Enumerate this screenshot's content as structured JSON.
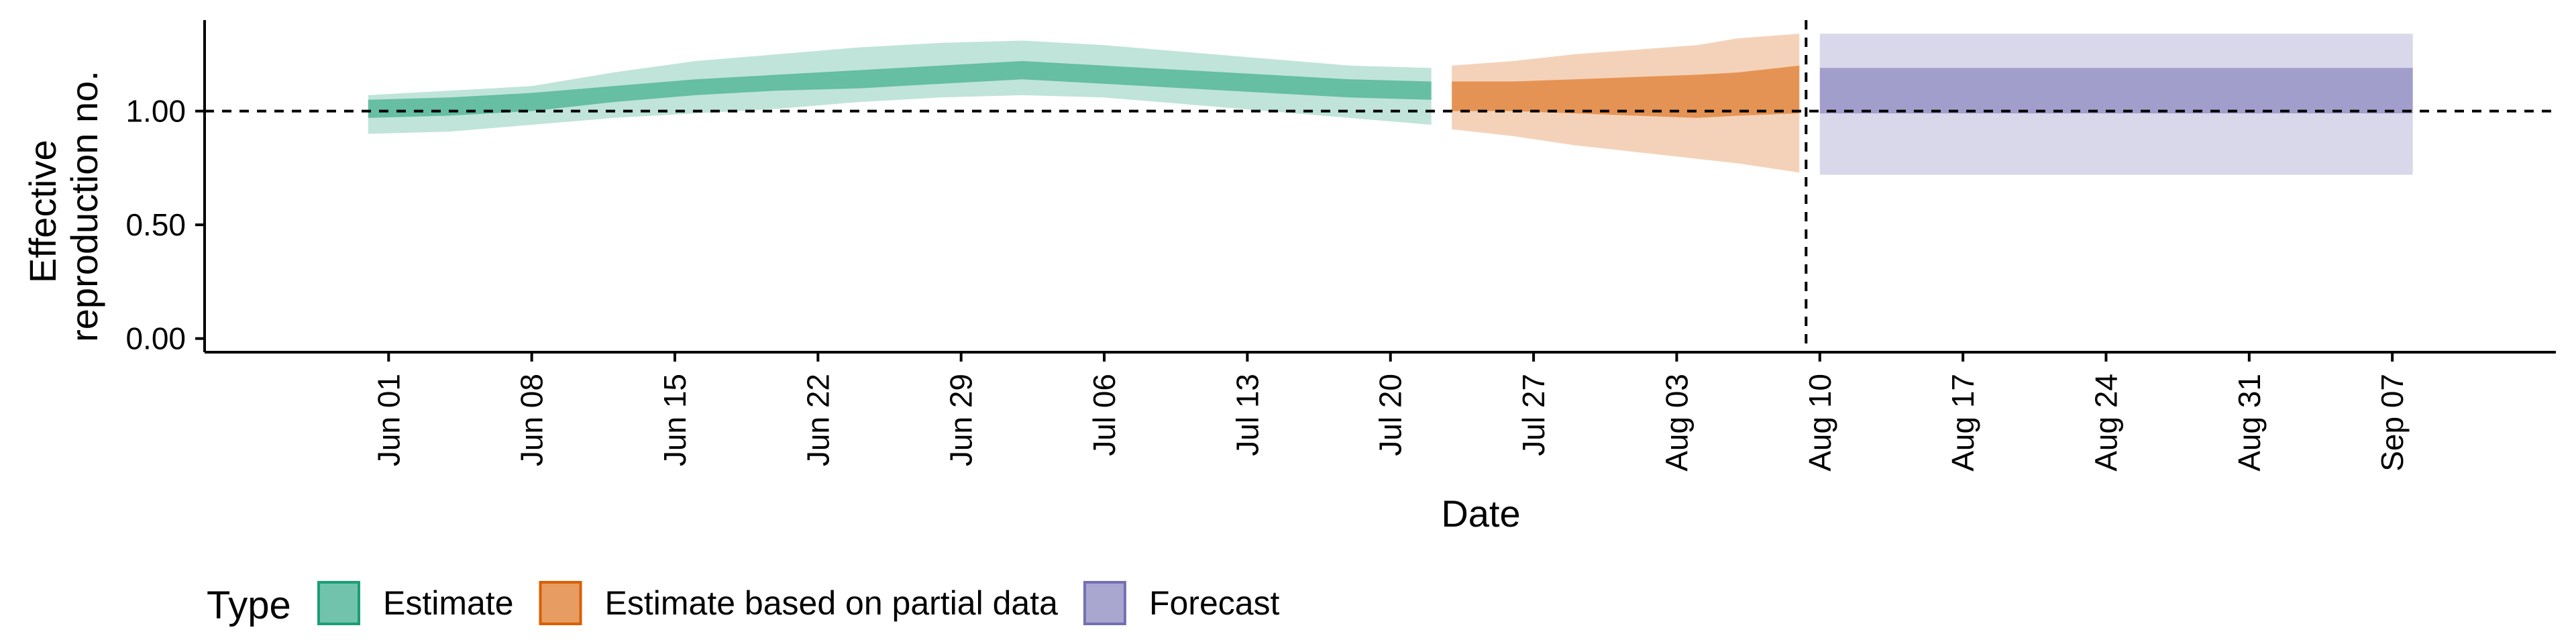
{
  "chart_data": {
    "type": "area",
    "xlabel": "Date",
    "ylabel_lines": [
      "Effective",
      "reproduction no."
    ],
    "x_ticks": [
      "Jun 01",
      "Jun 08",
      "Jun 15",
      "Jun 22",
      "Jun 29",
      "Jul 06",
      "Jul 13",
      "Jul 20",
      "Jul 27",
      "Aug 03",
      "Aug 10",
      "Aug 17",
      "Aug 24",
      "Aug 31",
      "Sep 07"
    ],
    "y_ticks": [
      "0.00",
      "0.50",
      "1.00"
    ],
    "xlim": [
      "2020-05-23",
      "2020-09-15"
    ],
    "ylim": [
      -0.06,
      1.4
    ],
    "reference_line_y": 1.0,
    "forecast_date": "2020-08-09",
    "legend_title": "Type",
    "legend_position": "bottom-left",
    "colors": {
      "Estimate": "#1b9e77",
      "Estimate based on partial data": "#d95f02",
      "Forecast": "#7570b3"
    },
    "series": [
      {
        "name": "Estimate",
        "x": [
          "2020-05-31",
          "2020-06-04",
          "2020-06-08",
          "2020-06-12",
          "2020-06-16",
          "2020-06-20",
          "2020-06-24",
          "2020-06-28",
          "2020-07-02",
          "2020-07-06",
          "2020-07-10",
          "2020-07-14",
          "2020-07-18",
          "2020-07-22"
        ],
        "inner_lower": [
          0.97,
          0.98,
          1.0,
          1.04,
          1.07,
          1.09,
          1.1,
          1.12,
          1.14,
          1.12,
          1.1,
          1.08,
          1.06,
          1.05
        ],
        "inner_upper": [
          1.05,
          1.06,
          1.08,
          1.11,
          1.14,
          1.16,
          1.18,
          1.2,
          1.22,
          1.2,
          1.18,
          1.16,
          1.14,
          1.13
        ],
        "outer_lower": [
          0.9,
          0.91,
          0.94,
          0.97,
          0.99,
          1.01,
          1.04,
          1.06,
          1.07,
          1.06,
          1.03,
          1.0,
          0.97,
          0.94
        ],
        "outer_upper": [
          1.07,
          1.09,
          1.11,
          1.17,
          1.22,
          1.25,
          1.28,
          1.3,
          1.31,
          1.29,
          1.26,
          1.23,
          1.2,
          1.19
        ]
      },
      {
        "name": "Estimate based on partial data",
        "x": [
          "2020-07-23",
          "2020-07-26",
          "2020-07-29",
          "2020-08-01",
          "2020-08-04",
          "2020-08-06",
          "2020-08-09"
        ],
        "inner_lower": [
          1.0,
          1.0,
          0.99,
          0.98,
          0.97,
          0.98,
          0.99
        ],
        "inner_upper": [
          1.13,
          1.13,
          1.14,
          1.15,
          1.16,
          1.17,
          1.2
        ],
        "outer_lower": [
          0.92,
          0.89,
          0.85,
          0.82,
          0.79,
          0.77,
          0.73
        ],
        "outer_upper": [
          1.2,
          1.22,
          1.25,
          1.27,
          1.29,
          1.32,
          1.34
        ]
      },
      {
        "name": "Forecast",
        "x": [
          "2020-08-10",
          "2020-09-08"
        ],
        "inner_lower": [
          0.99,
          0.99
        ],
        "inner_upper": [
          1.19,
          1.19
        ],
        "outer_lower": [
          0.72,
          0.72
        ],
        "outer_upper": [
          1.34,
          1.34
        ]
      }
    ]
  }
}
